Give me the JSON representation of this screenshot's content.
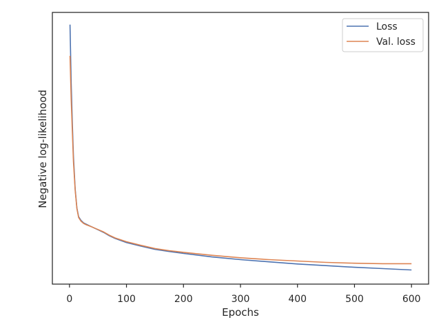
{
  "chart_data": {
    "type": "line",
    "xlabel": "Epochs",
    "ylabel": "Negative log-likelihood",
    "xlim": [
      -30,
      630
    ],
    "ylim": [
      0.0,
      1.0
    ],
    "y_ticks_shown": false,
    "x_ticks": [
      0,
      100,
      200,
      300,
      400,
      500,
      600
    ],
    "grid": false,
    "legend_position": "top-right",
    "series": [
      {
        "name": "Loss",
        "color": "#4c72b0",
        "x": [
          1,
          3,
          5,
          7,
          10,
          13,
          16,
          20,
          25,
          30,
          40,
          50,
          60,
          70,
          80,
          100,
          125,
          150,
          175,
          200,
          250,
          300,
          350,
          400,
          450,
          500,
          550,
          600
        ],
        "y": [
          0.955,
          0.74,
          0.59,
          0.47,
          0.35,
          0.28,
          0.248,
          0.235,
          0.225,
          0.22,
          0.21,
          0.2,
          0.19,
          0.178,
          0.168,
          0.153,
          0.14,
          0.128,
          0.12,
          0.113,
          0.1,
          0.09,
          0.082,
          0.074,
          0.068,
          0.062,
          0.057,
          0.052
        ]
      },
      {
        "name": "Val. loss",
        "color": "#dd8452",
        "x": [
          1,
          3,
          5,
          7,
          10,
          13,
          16,
          20,
          25,
          30,
          40,
          50,
          60,
          70,
          80,
          100,
          125,
          150,
          175,
          200,
          250,
          300,
          350,
          400,
          450,
          500,
          550,
          600
        ],
        "y": [
          0.84,
          0.68,
          0.56,
          0.45,
          0.345,
          0.278,
          0.245,
          0.232,
          0.223,
          0.218,
          0.21,
          0.201,
          0.192,
          0.18,
          0.17,
          0.156,
          0.143,
          0.131,
          0.123,
          0.117,
          0.106,
          0.097,
          0.09,
          0.085,
          0.08,
          0.077,
          0.075,
          0.075
        ]
      }
    ]
  }
}
